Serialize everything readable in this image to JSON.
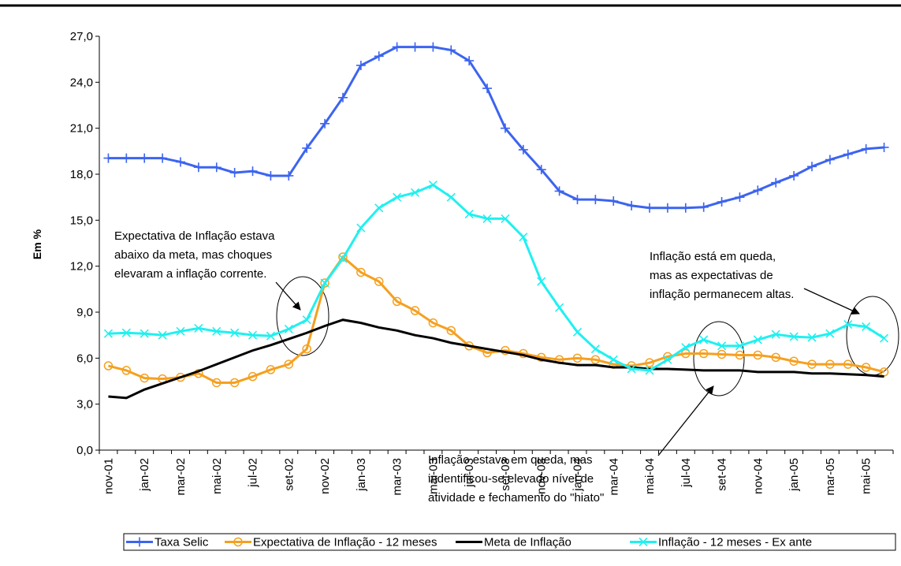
{
  "chart_data": {
    "type": "line",
    "y_label": "Em %",
    "categories": [
      "nov-01",
      null,
      "jan-02",
      null,
      "mar-02",
      null,
      "mai-02",
      null,
      "jul-02",
      null,
      "set-02",
      null,
      "nov-02",
      null,
      "jan-03",
      null,
      "mar-03",
      null,
      "mai-03",
      null,
      "jul-03",
      null,
      "set-03",
      null,
      "nov-03",
      null,
      "jan-04",
      null,
      "mar-04",
      null,
      "mai-04",
      null,
      "jul-04",
      null,
      "set-04",
      null,
      "nov-04",
      null,
      "jan-05",
      null,
      "mar-05",
      null,
      "mai-05",
      null
    ],
    "series": [
      {
        "name": "Taxa Selic",
        "color": "#3c64f0",
        "marker": "plus",
        "values": [
          19.05,
          19.05,
          19.05,
          19.05,
          18.8,
          18.45,
          18.45,
          18.1,
          18.2,
          17.9,
          17.9,
          19.7,
          21.3,
          23.0,
          25.1,
          25.7,
          26.3,
          26.3,
          26.3,
          26.1,
          25.4,
          23.6,
          21.0,
          19.6,
          18.3,
          16.9,
          16.35,
          16.35,
          16.25,
          15.95,
          15.8,
          15.8,
          15.8,
          15.85,
          16.2,
          16.5,
          16.95,
          17.45,
          17.9,
          18.5,
          18.95,
          19.3,
          19.65,
          19.75
        ]
      },
      {
        "name": "Expectativa de Inflação - 12 meses",
        "color": "#f5a020",
        "marker": "circle",
        "values": [
          5.5,
          5.2,
          4.7,
          4.65,
          4.75,
          5.0,
          4.4,
          4.4,
          4.8,
          5.25,
          5.6,
          6.6,
          10.9,
          12.6,
          11.6,
          11.0,
          9.7,
          9.1,
          8.3,
          7.8,
          6.8,
          6.35,
          6.5,
          6.3,
          6.05,
          5.9,
          6.0,
          5.9,
          5.6,
          5.5,
          5.7,
          6.1,
          6.3,
          6.3,
          6.25,
          6.2,
          6.2,
          6.05,
          5.8,
          5.6,
          5.6,
          5.6,
          5.4,
          5.1
        ]
      },
      {
        "name": "Meta de Inflação",
        "color": "#000000",
        "marker": "none",
        "values": [
          3.5,
          3.4,
          3.95,
          4.35,
          4.75,
          5.15,
          5.6,
          6.05,
          6.5,
          6.85,
          7.25,
          7.65,
          8.1,
          8.5,
          8.3,
          8.0,
          7.8,
          7.5,
          7.3,
          7.0,
          6.8,
          6.6,
          6.4,
          6.2,
          5.9,
          5.7,
          5.55,
          5.55,
          5.4,
          5.4,
          5.3,
          5.3,
          5.25,
          5.2,
          5.2,
          5.2,
          5.1,
          5.1,
          5.1,
          5.0,
          5.0,
          4.95,
          4.9,
          4.8
        ]
      },
      {
        "name": "Inflação - 12 meses - Ex ante",
        "color": "#20f0f0",
        "marker": "x",
        "values": [
          7.6,
          7.65,
          7.6,
          7.5,
          7.75,
          7.95,
          7.75,
          7.65,
          7.5,
          7.45,
          7.9,
          8.5,
          10.9,
          12.5,
          14.5,
          15.8,
          16.5,
          16.8,
          17.3,
          16.5,
          15.4,
          15.1,
          15.1,
          13.9,
          11.0,
          9.3,
          7.7,
          6.6,
          5.9,
          5.3,
          5.2,
          5.9,
          6.7,
          7.2,
          6.8,
          6.8,
          7.2,
          7.55,
          7.4,
          7.35,
          7.6,
          8.2,
          8.05,
          7.3
        ]
      }
    ],
    "ylim": [
      0,
      27
    ],
    "yticks": [
      {
        "value": 0,
        "label": "0,0"
      },
      {
        "value": 3,
        "label": "3,0"
      },
      {
        "value": 6,
        "label": "6,0"
      },
      {
        "value": 9,
        "label": "9,0"
      },
      {
        "value": 12,
        "label": "12,0"
      },
      {
        "value": 15,
        "label": "15,0"
      },
      {
        "value": 18,
        "label": "18,0"
      },
      {
        "value": 21,
        "label": "21,0"
      },
      {
        "value": 24,
        "label": "24,0"
      },
      {
        "value": 27,
        "label": "27,0"
      }
    ],
    "legend": "bottom",
    "annotations": [
      {
        "lines": [
          "Expectativa de Inflação estava",
          "abaixo da meta, mas choques",
          "elevaram a inflação corrente."
        ]
      },
      {
        "lines": [
          "Inflação está em queda,",
          "mas as expectativas de",
          "inflação permanecem altas."
        ]
      },
      {
        "lines": [
          "Inflação estava em queda, mas",
          "indentificou-se elevado nível de",
          "atividade e fechamento do \"hiato\""
        ]
      }
    ]
  }
}
